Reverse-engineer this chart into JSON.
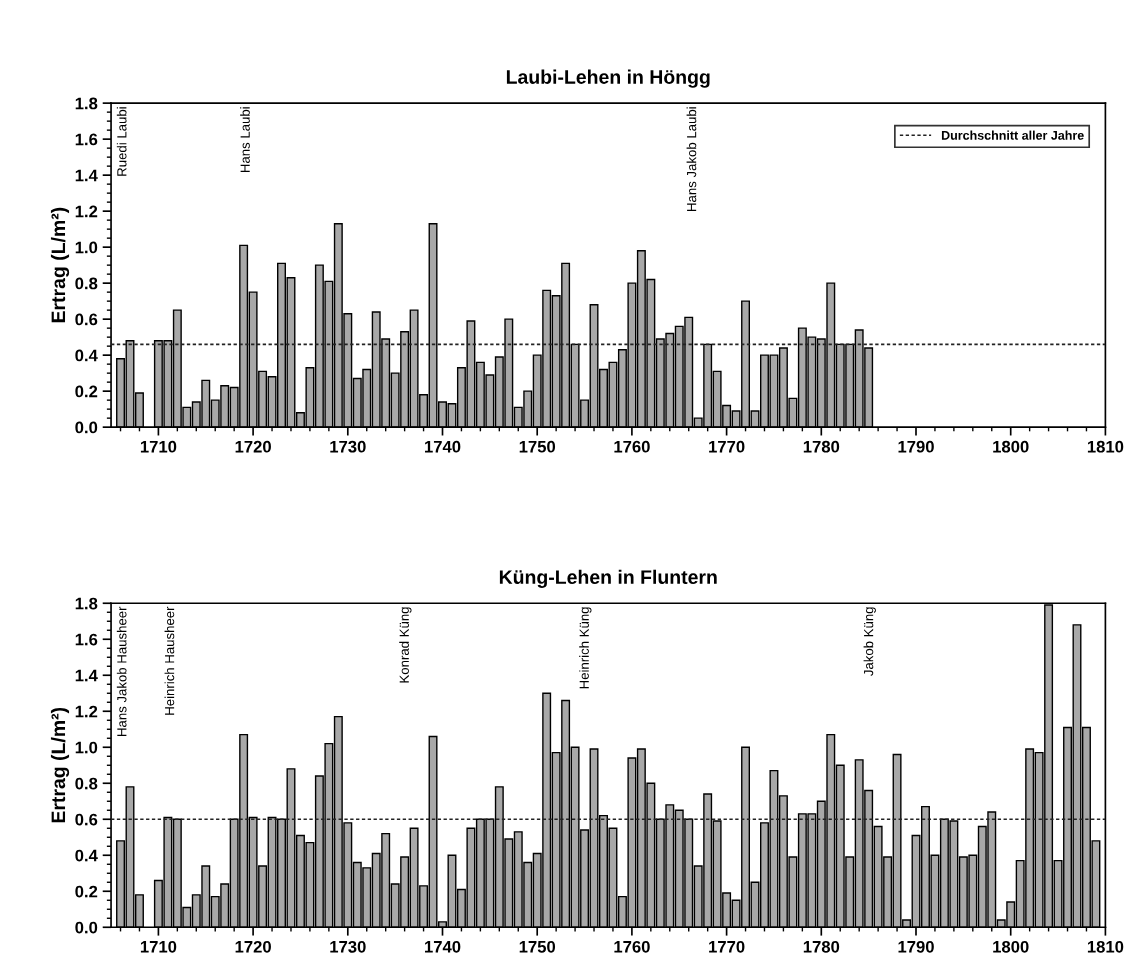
{
  "chart_data": [
    {
      "type": "bar",
      "title": "Laubi-Lehen in Höngg",
      "ylabel": "Ertrag (L/m²)",
      "color": "#a8a8a8",
      "x": [
        1706,
        1707,
        1708,
        1709,
        1710,
        1711,
        1712,
        1713,
        1714,
        1715,
        1716,
        1717,
        1718,
        1719,
        1720,
        1721,
        1722,
        1723,
        1724,
        1725,
        1726,
        1727,
        1728,
        1729,
        1730,
        1731,
        1732,
        1733,
        1734,
        1735,
        1736,
        1737,
        1738,
        1739,
        1740,
        1741,
        1742,
        1743,
        1744,
        1745,
        1746,
        1747,
        1748,
        1749,
        1750,
        1751,
        1752,
        1753,
        1754,
        1755,
        1756,
        1757,
        1758,
        1759,
        1760,
        1761,
        1762,
        1763,
        1764,
        1765,
        1766,
        1767,
        1768,
        1769,
        1770,
        1771,
        1772,
        1773,
        1774,
        1775,
        1776,
        1777,
        1778,
        1779,
        1780,
        1781,
        1782,
        1783,
        1784,
        1785
      ],
      "values": [
        0.38,
        0.48,
        0.19,
        null,
        0.48,
        0.48,
        0.65,
        0.11,
        0.14,
        0.26,
        0.15,
        0.23,
        0.22,
        1.01,
        0.75,
        0.31,
        0.28,
        0.91,
        0.83,
        0.08,
        0.33,
        0.9,
        0.81,
        1.13,
        0.63,
        0.27,
        0.32,
        0.64,
        0.49,
        0.3,
        0.53,
        0.65,
        0.18,
        1.13,
        0.14,
        0.13,
        0.33,
        0.59,
        0.36,
        0.29,
        0.39,
        0.6,
        0.11,
        0.2,
        0.4,
        0.76,
        0.73,
        0.91,
        0.46,
        0.15,
        0.68,
        0.32,
        0.36,
        0.43,
        0.8,
        0.98,
        0.82,
        0.49,
        0.52,
        0.56,
        0.61,
        0.05,
        0.46,
        0.31,
        0.12,
        0.09,
        0.7,
        0.09,
        0.4,
        0.4,
        0.44,
        0.16,
        0.55,
        0.5,
        0.49,
        0.8,
        0.46,
        0.46,
        0.54,
        0.44
      ],
      "xlim": [
        1705,
        1810
      ],
      "xticks": [
        1710,
        1720,
        1730,
        1740,
        1750,
        1760,
        1770,
        1780,
        1790,
        1800,
        1810
      ],
      "ylim": [
        0,
        1.8
      ],
      "yticks": [
        {
          "value": 0,
          "label": "0.0"
        },
        {
          "value": 0.2,
          "label": "0.2"
        },
        {
          "value": 0.4,
          "label": "0.4"
        },
        {
          "value": 0.6,
          "label": "0.6"
        },
        {
          "value": 0.8,
          "label": "0.8"
        },
        {
          "value": 1.0,
          "label": "1.0"
        },
        {
          "value": 1.2,
          "label": "1.2"
        },
        {
          "value": 1.4,
          "label": "1.4"
        },
        {
          "value": 1.6,
          "label": "1.6"
        },
        {
          "value": 1.8,
          "label": "1.8"
        }
      ],
      "ref_lines": [
        {
          "axis": "y",
          "value": 0.46,
          "label": "Durchschnitt aller Jahre",
          "color": "#222222",
          "line_style": "dotted"
        }
      ],
      "legend": "top right",
      "annotations": [
        "Ruedi Laubi",
        "Hans Laubi",
        "Hans Jakob Laubi"
      ]
    },
    {
      "type": "bar",
      "title": "Küng-Lehen in Fluntern",
      "ylabel": "Ertrag (L/m²)",
      "color": "#a8a8a8",
      "x": [
        1706,
        1707,
        1708,
        1709,
        1710,
        1711,
        1712,
        1713,
        1714,
        1715,
        1716,
        1717,
        1718,
        1719,
        1720,
        1721,
        1722,
        1723,
        1724,
        1725,
        1726,
        1727,
        1728,
        1729,
        1730,
        1731,
        1732,
        1733,
        1734,
        1735,
        1736,
        1737,
        1738,
        1739,
        1740,
        1741,
        1742,
        1743,
        1744,
        1745,
        1746,
        1747,
        1748,
        1749,
        1750,
        1751,
        1752,
        1753,
        1754,
        1755,
        1756,
        1757,
        1758,
        1759,
        1760,
        1761,
        1762,
        1763,
        1764,
        1765,
        1766,
        1767,
        1768,
        1769,
        1770,
        1771,
        1772,
        1773,
        1774,
        1775,
        1776,
        1777,
        1778,
        1779,
        1780,
        1781,
        1782,
        1783,
        1784,
        1785,
        1786,
        1787,
        1788,
        1789,
        1790,
        1791,
        1792,
        1793,
        1794,
        1795,
        1796,
        1797,
        1798,
        1799,
        1800,
        1801,
        1802,
        1803,
        1804,
        1805,
        1806,
        1807,
        1808,
        1809
      ],
      "values": [
        0.48,
        0.78,
        0.18,
        null,
        0.26,
        0.61,
        0.6,
        0.11,
        0.18,
        0.34,
        0.17,
        0.24,
        0.6,
        1.07,
        0.61,
        0.34,
        0.61,
        0.6,
        0.88,
        0.51,
        0.47,
        0.84,
        1.02,
        1.17,
        0.58,
        0.36,
        0.33,
        0.41,
        0.52,
        0.24,
        0.39,
        0.55,
        0.23,
        1.06,
        0.03,
        0.4,
        0.21,
        0.55,
        0.6,
        0.6,
        0.78,
        0.49,
        0.53,
        0.36,
        0.41,
        1.3,
        0.97,
        1.26,
        1.0,
        0.54,
        0.99,
        0.62,
        0.55,
        0.17,
        0.94,
        0.99,
        0.8,
        0.6,
        0.68,
        0.65,
        0.6,
        0.34,
        0.74,
        0.59,
        0.19,
        0.15,
        1.0,
        0.25,
        0.58,
        0.87,
        0.73,
        0.39,
        0.63,
        0.63,
        0.7,
        1.07,
        0.9,
        0.39,
        0.93,
        0.76,
        0.56,
        0.39,
        0.96,
        0.04,
        0.51,
        0.67,
        0.4,
        0.6,
        0.59,
        0.39,
        0.4,
        0.56,
        0.64,
        0.04,
        0.14,
        0.37,
        0.99,
        0.97,
        1.79,
        0.37,
        1.11,
        1.68,
        1.11,
        0.48
      ],
      "xlim": [
        1705,
        1810
      ],
      "xticks": [
        1710,
        1720,
        1730,
        1740,
        1750,
        1760,
        1770,
        1780,
        1790,
        1800,
        1810
      ],
      "ylim": [
        0,
        1.8
      ],
      "yticks": [
        {
          "value": 0,
          "label": "0.0"
        },
        {
          "value": 0.2,
          "label": "0.2"
        },
        {
          "value": 0.4,
          "label": "0.4"
        },
        {
          "value": 0.6,
          "label": "0.6"
        },
        {
          "value": 0.8,
          "label": "0.8"
        },
        {
          "value": 1.0,
          "label": "1.0"
        },
        {
          "value": 1.2,
          "label": "1.2"
        },
        {
          "value": 1.4,
          "label": "1.4"
        },
        {
          "value": 1.6,
          "label": "1.6"
        },
        {
          "value": 1.8,
          "label": "1.8"
        }
      ],
      "ref_lines": [
        {
          "axis": "y",
          "value": 0.6,
          "color": "#222222",
          "line_style": "dotted"
        }
      ],
      "annotations": [
        "Hans Jakob Hausheer",
        "Heinrich Hausheer",
        "Konrad Küng",
        "Heinrich Küng",
        "Jakob Küng"
      ]
    }
  ]
}
